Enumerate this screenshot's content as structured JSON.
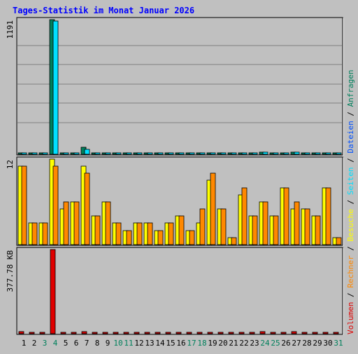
{
  "chart_data": {
    "type": "bar",
    "title": "Tages-Statistik im Monat Januar 2026",
    "categories": [
      "1",
      "2",
      "3",
      "4",
      "5",
      "6",
      "7",
      "8",
      "9",
      "10",
      "11",
      "12",
      "13",
      "14",
      "15",
      "16",
      "17",
      "18",
      "19",
      "20",
      "21",
      "22",
      "23",
      "24",
      "25",
      "26",
      "27",
      "28",
      "29",
      "30",
      "31"
    ],
    "weekend_days": [
      "3",
      "4",
      "10",
      "11",
      "17",
      "18",
      "24",
      "25",
      "31"
    ],
    "panels": [
      {
        "id": "anfragen",
        "max_label": "1191",
        "ylim": [
          0,
          1191
        ],
        "right_labels": [
          "Anfragen",
          "Dateien"
        ],
        "series": [
          {
            "name": "Anfragen",
            "color": "#00805c",
            "values": [
              12,
              3,
              3,
              1191,
              3,
              3,
              65,
              3,
              3,
              3,
              3,
              3,
              3,
              3,
              3,
              3,
              3,
              3,
              12,
              3,
              3,
              12,
              3,
              20,
              3,
              12,
              20,
              12,
              12,
              12,
              3
            ]
          },
          {
            "name": "Dateien",
            "color": "#00e0ff",
            "values": [
              10,
              2,
              2,
              1180,
              2,
              2,
              45,
              2,
              2,
              2,
              2,
              2,
              2,
              2,
              2,
              2,
              2,
              2,
              10,
              2,
              2,
              10,
              2,
              16,
              2,
              10,
              16,
              10,
              10,
              10,
              2
            ]
          }
        ]
      },
      {
        "id": "besuche",
        "max_label": "12",
        "ylim": [
          0,
          12
        ],
        "right_labels": [
          "Seiten",
          "Besuche",
          "Rechner"
        ],
        "series": [
          {
            "name": "Besuche",
            "color": "#ffff00",
            "values": [
              11,
              3,
              3,
              12,
              5,
              6,
              11,
              4,
              6,
              3,
              2,
              3,
              3,
              2,
              3,
              4,
              2,
              3,
              9,
              5,
              1,
              7,
              4,
              6,
              4,
              8,
              5,
              5,
              4,
              8,
              1
            ]
          },
          {
            "name": "Rechner",
            "color": "#ff8800",
            "values": [
              11,
              3,
              3,
              11,
              6,
              6,
              10,
              4,
              6,
              3,
              2,
              3,
              3,
              2,
              3,
              4,
              2,
              5,
              10,
              5,
              1,
              8,
              4,
              6,
              4,
              8,
              6,
              5,
              4,
              8,
              1
            ]
          }
        ]
      },
      {
        "id": "volumen",
        "max_label": "377.78 KB",
        "ylim": [
          0,
          377.78
        ],
        "right_labels": [
          "Volumen"
        ],
        "series": [
          {
            "name": "Volumen",
            "color": "#e00000",
            "values": [
              8,
              2,
              2,
              377.78,
              2,
              2,
              10,
              2,
              2,
              2,
              2,
              2,
              2,
              2,
              2,
              2,
              2,
              2,
              6,
              2,
              2,
              6,
              2,
              8,
              2,
              6,
              8,
              6,
              6,
              6,
              2
            ]
          }
        ]
      }
    ]
  },
  "legend_right": [
    {
      "text": "Volumen",
      "color": "#e00000"
    },
    {
      "text": " / ",
      "color": "#000000"
    },
    {
      "text": "Rechner",
      "color": "#ff8800"
    },
    {
      "text": " / ",
      "color": "#000000"
    },
    {
      "text": "Besuche",
      "color": "#ffff00"
    },
    {
      "text": " / ",
      "color": "#000000"
    },
    {
      "text": "Seiten",
      "color": "#00e0ff"
    },
    {
      "text": " / ",
      "color": "#000000"
    },
    {
      "text": "Dateien",
      "color": "#0050ff"
    },
    {
      "text": " / ",
      "color": "#000000"
    },
    {
      "text": "Anfragen",
      "color": "#00805c"
    }
  ],
  "colors": {
    "background": "#c0c0c0",
    "title": "#0000ff",
    "weekend_label": "#00805c",
    "weekday_label": "#000000",
    "gridline": "#808080"
  }
}
